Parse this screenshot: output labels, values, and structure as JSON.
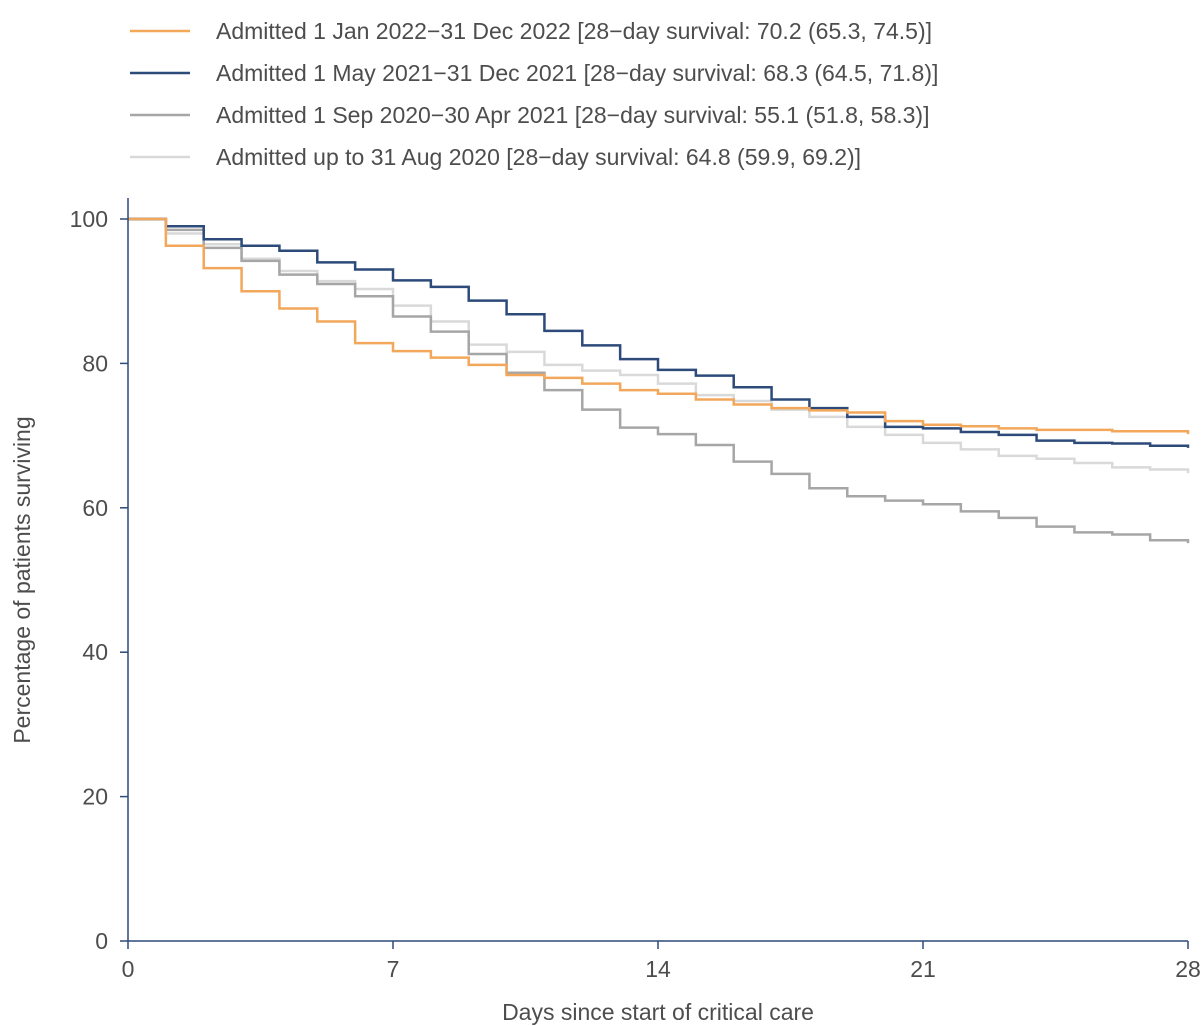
{
  "chart_data": {
    "type": "line",
    "step": true,
    "xlabel": "Days since start of critical care",
    "ylabel": "Percentage of patients surviving",
    "xlim": [
      0,
      28
    ],
    "ylim": [
      0,
      100
    ],
    "x_ticks": [
      "0",
      "7",
      "14",
      "21",
      "28"
    ],
    "y_ticks": [
      "0",
      "20",
      "40",
      "60",
      "80",
      "100"
    ],
    "grid": false,
    "legend_position": "top",
    "axis_color": "#2c4a7a",
    "series": [
      {
        "name": "Admitted 1 Jan 2022−31 Dec 2022 [28−day survival: 70.2 (65.3, 74.5)]",
        "color": "#f2a75b",
        "x": [
          0,
          1,
          2,
          3,
          4,
          5,
          6,
          7,
          8,
          9,
          10,
          11,
          12,
          13,
          14,
          15,
          16,
          17,
          18,
          19,
          20,
          21,
          22,
          23,
          24,
          25,
          26,
          27,
          28
        ],
        "y": [
          100,
          96.3,
          93.2,
          90.0,
          87.6,
          85.8,
          82.8,
          81.7,
          80.8,
          79.8,
          78.4,
          78.0,
          77.2,
          76.3,
          75.8,
          75.0,
          74.3,
          73.8,
          73.5,
          73.2,
          72.0,
          71.5,
          71.3,
          71.0,
          70.8,
          70.8,
          70.6,
          70.6,
          70.2
        ]
      },
      {
        "name": "Admitted 1 May 2021−31 Dec 2021 [28−day survival: 68.3 (64.5, 71.8)]",
        "color": "#2c4a7a",
        "x": [
          0,
          1,
          2,
          3,
          4,
          5,
          6,
          7,
          8,
          9,
          10,
          11,
          12,
          13,
          14,
          15,
          16,
          17,
          18,
          19,
          20,
          21,
          22,
          23,
          24,
          25,
          26,
          27,
          28
        ],
        "y": [
          100,
          99.0,
          97.2,
          96.3,
          95.6,
          94.0,
          93.0,
          91.5,
          90.6,
          88.7,
          86.8,
          84.5,
          82.5,
          80.6,
          79.1,
          78.3,
          76.7,
          75.0,
          73.8,
          72.6,
          71.2,
          71.0,
          70.5,
          70.1,
          69.3,
          69.0,
          68.9,
          68.6,
          68.3
        ]
      },
      {
        "name": "Admitted 1 Sep 2020−30 Apr 2021 [28−day survival: 55.1 (51.8, 58.3)]",
        "color": "#a6a6a6",
        "x": [
          0,
          1,
          2,
          3,
          4,
          5,
          6,
          7,
          8,
          9,
          10,
          11,
          12,
          13,
          14,
          15,
          16,
          17,
          18,
          19,
          20,
          21,
          22,
          23,
          24,
          25,
          26,
          27,
          28
        ],
        "y": [
          100,
          98.5,
          96.0,
          94.2,
          92.3,
          91.0,
          89.3,
          86.5,
          84.4,
          81.3,
          78.7,
          76.3,
          73.6,
          71.1,
          70.2,
          68.7,
          66.4,
          64.7,
          62.7,
          61.6,
          61.0,
          60.5,
          59.5,
          58.6,
          57.4,
          56.6,
          56.3,
          55.5,
          55.1
        ]
      },
      {
        "name": "Admitted up to 31 Aug 2020 [28−day survival: 64.8 (59.9, 69.2)]",
        "color": "#d9d9d9",
        "x": [
          0,
          1,
          2,
          3,
          4,
          5,
          6,
          7,
          8,
          9,
          10,
          11,
          12,
          13,
          14,
          15,
          16,
          17,
          18,
          19,
          20,
          21,
          22,
          23,
          24,
          25,
          26,
          27,
          28
        ],
        "y": [
          100,
          98.0,
          96.5,
          94.5,
          92.8,
          91.4,
          90.3,
          88.0,
          85.8,
          82.6,
          81.6,
          79.8,
          79.0,
          78.4,
          77.2,
          75.6,
          74.8,
          73.6,
          72.6,
          71.2,
          70.1,
          69.0,
          68.1,
          67.2,
          66.8,
          66.2,
          65.6,
          65.3,
          64.8
        ]
      }
    ]
  }
}
